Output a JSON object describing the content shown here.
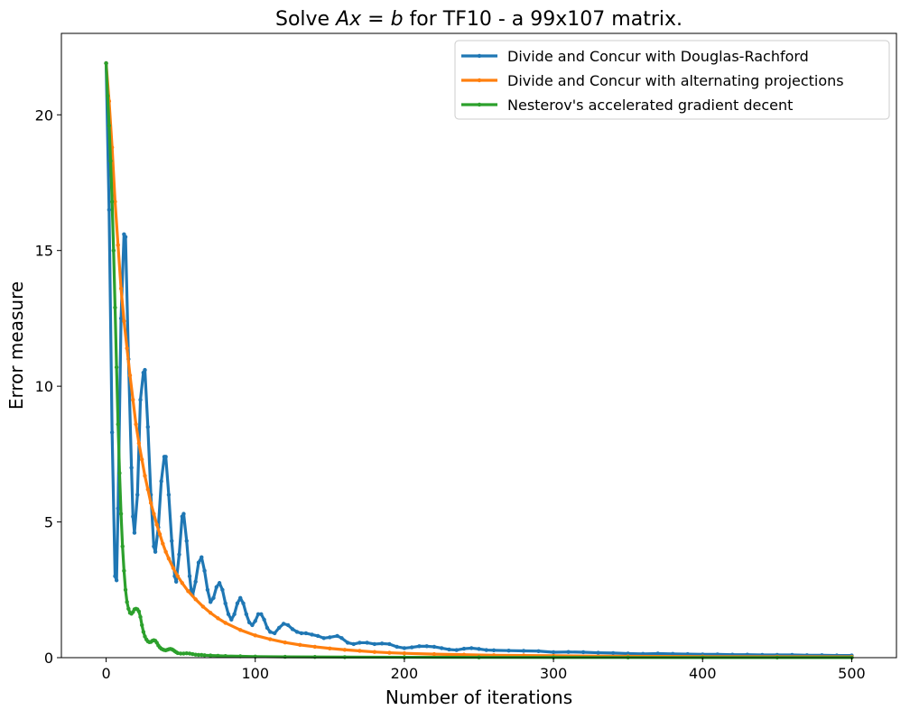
{
  "chart_data": {
    "type": "line",
    "title": "Solve Ax = b for TF10 - a 99x107 matrix.",
    "title_parts": {
      "prefix": "Solve ",
      "math": "Ax = b",
      "suffix": " for TF10 - a 99x107 matrix."
    },
    "xlabel": "Number of iterations",
    "ylabel": "Error measure",
    "xlim": [
      -30,
      530
    ],
    "ylim": [
      0,
      23
    ],
    "xticks": [
      0,
      100,
      200,
      300,
      400,
      500
    ],
    "yticks": [
      0,
      5,
      10,
      15,
      20
    ],
    "grid": false,
    "legend_position": "top-right",
    "series": [
      {
        "name": "Divide and Concur with Douglas-Rachford",
        "color": "#1f77b4",
        "points": [
          [
            0,
            21.9
          ],
          [
            2,
            16.5
          ],
          [
            4,
            8.3
          ],
          [
            6,
            3.0
          ],
          [
            7,
            2.85
          ],
          [
            8,
            5.5
          ],
          [
            10,
            12.5
          ],
          [
            12,
            15.6
          ],
          [
            13,
            15.5
          ],
          [
            15,
            11.0
          ],
          [
            17,
            7.0
          ],
          [
            18,
            5.2
          ],
          [
            19,
            4.6
          ],
          [
            21,
            6.0
          ],
          [
            23,
            9.5
          ],
          [
            25,
            10.5
          ],
          [
            26,
            10.6
          ],
          [
            28,
            8.5
          ],
          [
            30,
            6.0
          ],
          [
            32,
            4.1
          ],
          [
            33,
            3.9
          ],
          [
            35,
            4.8
          ],
          [
            37,
            6.5
          ],
          [
            39,
            7.4
          ],
          [
            40,
            7.4
          ],
          [
            42,
            6.0
          ],
          [
            44,
            4.3
          ],
          [
            46,
            3.0
          ],
          [
            47,
            2.8
          ],
          [
            49,
            3.8
          ],
          [
            51,
            5.2
          ],
          [
            52,
            5.3
          ],
          [
            54,
            4.3
          ],
          [
            56,
            3.0
          ],
          [
            57,
            2.5
          ],
          [
            58,
            2.3
          ],
          [
            60,
            2.8
          ],
          [
            62,
            3.5
          ],
          [
            64,
            3.7
          ],
          [
            66,
            3.2
          ],
          [
            68,
            2.5
          ],
          [
            70,
            2.05
          ],
          [
            72,
            2.2
          ],
          [
            74,
            2.6
          ],
          [
            76,
            2.75
          ],
          [
            78,
            2.5
          ],
          [
            80,
            2.0
          ],
          [
            82,
            1.6
          ],
          [
            84,
            1.4
          ],
          [
            86,
            1.6
          ],
          [
            88,
            2.0
          ],
          [
            90,
            2.2
          ],
          [
            92,
            2.0
          ],
          [
            94,
            1.6
          ],
          [
            96,
            1.3
          ],
          [
            98,
            1.2
          ],
          [
            100,
            1.35
          ],
          [
            102,
            1.6
          ],
          [
            104,
            1.6
          ],
          [
            106,
            1.4
          ],
          [
            108,
            1.1
          ],
          [
            110,
            0.95
          ],
          [
            113,
            0.9
          ],
          [
            116,
            1.1
          ],
          [
            119,
            1.25
          ],
          [
            122,
            1.2
          ],
          [
            125,
            1.05
          ],
          [
            128,
            0.95
          ],
          [
            131,
            0.9
          ],
          [
            134,
            0.9
          ],
          [
            138,
            0.85
          ],
          [
            142,
            0.8
          ],
          [
            146,
            0.72
          ],
          [
            150,
            0.75
          ],
          [
            155,
            0.8
          ],
          [
            158,
            0.72
          ],
          [
            162,
            0.55
          ],
          [
            166,
            0.5
          ],
          [
            170,
            0.55
          ],
          [
            175,
            0.55
          ],
          [
            180,
            0.5
          ],
          [
            185,
            0.52
          ],
          [
            190,
            0.5
          ],
          [
            195,
            0.4
          ],
          [
            200,
            0.35
          ],
          [
            205,
            0.38
          ],
          [
            210,
            0.42
          ],
          [
            215,
            0.42
          ],
          [
            220,
            0.4
          ],
          [
            225,
            0.35
          ],
          [
            230,
            0.3
          ],
          [
            235,
            0.28
          ],
          [
            240,
            0.33
          ],
          [
            245,
            0.35
          ],
          [
            250,
            0.32
          ],
          [
            255,
            0.28
          ],
          [
            260,
            0.27
          ],
          [
            270,
            0.26
          ],
          [
            280,
            0.25
          ],
          [
            290,
            0.24
          ],
          [
            300,
            0.2
          ],
          [
            310,
            0.21
          ],
          [
            320,
            0.2
          ],
          [
            330,
            0.18
          ],
          [
            340,
            0.17
          ],
          [
            350,
            0.15
          ],
          [
            360,
            0.14
          ],
          [
            370,
            0.15
          ],
          [
            380,
            0.14
          ],
          [
            390,
            0.13
          ],
          [
            400,
            0.12
          ],
          [
            410,
            0.12
          ],
          [
            420,
            0.11
          ],
          [
            430,
            0.11
          ],
          [
            440,
            0.1
          ],
          [
            450,
            0.1
          ],
          [
            460,
            0.1
          ],
          [
            470,
            0.09
          ],
          [
            480,
            0.09
          ],
          [
            490,
            0.08
          ],
          [
            500,
            0.08
          ]
        ]
      },
      {
        "name": "Divide and Concur with alternating projections",
        "color": "#ff7f0e",
        "points": [
          [
            0,
            21.9
          ],
          [
            2,
            20.5
          ],
          [
            4,
            18.8
          ],
          [
            6,
            16.8
          ],
          [
            8,
            15.2
          ],
          [
            10,
            13.6
          ],
          [
            12,
            12.4
          ],
          [
            14,
            11.4
          ],
          [
            16,
            10.4
          ],
          [
            18,
            9.5
          ],
          [
            20,
            8.6
          ],
          [
            22,
            7.9
          ],
          [
            24,
            7.3
          ],
          [
            26,
            6.7
          ],
          [
            28,
            6.2
          ],
          [
            30,
            5.7
          ],
          [
            32,
            5.3
          ],
          [
            34,
            4.9
          ],
          [
            36,
            4.55
          ],
          [
            38,
            4.2
          ],
          [
            40,
            3.9
          ],
          [
            42,
            3.65
          ],
          [
            45,
            3.3
          ],
          [
            48,
            3.0
          ],
          [
            51,
            2.75
          ],
          [
            55,
            2.45
          ],
          [
            60,
            2.15
          ],
          [
            65,
            1.88
          ],
          [
            70,
            1.65
          ],
          [
            75,
            1.45
          ],
          [
            80,
            1.28
          ],
          [
            90,
            1.02
          ],
          [
            100,
            0.82
          ],
          [
            110,
            0.68
          ],
          [
            120,
            0.56
          ],
          [
            130,
            0.47
          ],
          [
            140,
            0.4
          ],
          [
            150,
            0.34
          ],
          [
            160,
            0.29
          ],
          [
            170,
            0.25
          ],
          [
            180,
            0.21
          ],
          [
            190,
            0.18
          ],
          [
            200,
            0.16
          ],
          [
            220,
            0.13
          ],
          [
            240,
            0.11
          ],
          [
            260,
            0.09
          ],
          [
            280,
            0.08
          ],
          [
            300,
            0.07
          ],
          [
            350,
            0.05
          ],
          [
            400,
            0.04
          ],
          [
            450,
            0.035
          ],
          [
            500,
            0.03
          ]
        ]
      },
      {
        "name": "Nesterov's accelerated gradient decent",
        "color": "#2ca02c",
        "points": [
          [
            0,
            21.9
          ],
          [
            1,
            20.7
          ],
          [
            2,
            19.6
          ],
          [
            3,
            18.3
          ],
          [
            4,
            16.8
          ],
          [
            5,
            15.0
          ],
          [
            6,
            12.9
          ],
          [
            7,
            10.7
          ],
          [
            8,
            8.6
          ],
          [
            9,
            6.8
          ],
          [
            10,
            5.3
          ],
          [
            11,
            4.1
          ],
          [
            12,
            3.2
          ],
          [
            13,
            2.5
          ],
          [
            14,
            2.05
          ],
          [
            15,
            1.8
          ],
          [
            16,
            1.65
          ],
          [
            17,
            1.62
          ],
          [
            18,
            1.68
          ],
          [
            19,
            1.78
          ],
          [
            20,
            1.8
          ],
          [
            21,
            1.78
          ],
          [
            22,
            1.7
          ],
          [
            23,
            1.5
          ],
          [
            24,
            1.2
          ],
          [
            25,
            0.95
          ],
          [
            26,
            0.78
          ],
          [
            27,
            0.67
          ],
          [
            28,
            0.6
          ],
          [
            29,
            0.57
          ],
          [
            30,
            0.58
          ],
          [
            31,
            0.62
          ],
          [
            32,
            0.64
          ],
          [
            33,
            0.62
          ],
          [
            34,
            0.55
          ],
          [
            35,
            0.45
          ],
          [
            36,
            0.38
          ],
          [
            37,
            0.33
          ],
          [
            38,
            0.3
          ],
          [
            39,
            0.28
          ],
          [
            40,
            0.27
          ],
          [
            41,
            0.29
          ],
          [
            42,
            0.31
          ],
          [
            43,
            0.32
          ],
          [
            44,
            0.31
          ],
          [
            45,
            0.28
          ],
          [
            46,
            0.24
          ],
          [
            47,
            0.2
          ],
          [
            48,
            0.17
          ],
          [
            50,
            0.15
          ],
          [
            52,
            0.15
          ],
          [
            54,
            0.16
          ],
          [
            56,
            0.15
          ],
          [
            58,
            0.13
          ],
          [
            60,
            0.11
          ],
          [
            62,
            0.1
          ],
          [
            64,
            0.1
          ],
          [
            66,
            0.09
          ],
          [
            70,
            0.08
          ],
          [
            75,
            0.07
          ],
          [
            80,
            0.06
          ],
          [
            90,
            0.05
          ],
          [
            100,
            0.04
          ],
          [
            120,
            0.03
          ],
          [
            140,
            0.025
          ],
          [
            160,
            0.02
          ],
          [
            200,
            0.015
          ],
          [
            250,
            0.01
          ],
          [
            300,
            0.008
          ],
          [
            350,
            0.006
          ],
          [
            400,
            0.005
          ],
          [
            450,
            0.004
          ],
          [
            500,
            0.003
          ]
        ]
      }
    ]
  }
}
